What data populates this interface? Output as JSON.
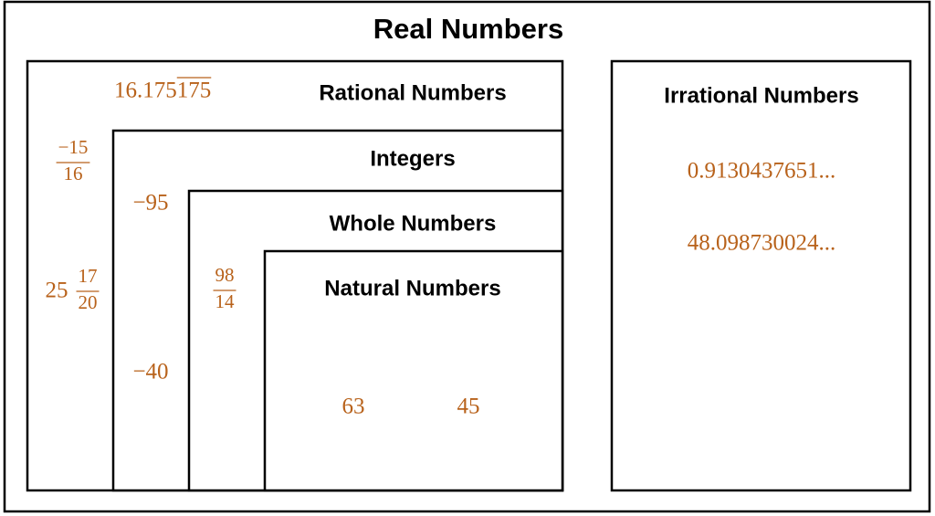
{
  "title": "Real Numbers",
  "rational": {
    "label": "Rational Numbers",
    "items": [
      {
        "whole": "16.175",
        "repeat": "175"
      },
      {
        "numerator": "−15",
        "denominator": "16"
      },
      {
        "whole": "25",
        "numerator": "17",
        "denominator": "20"
      }
    ]
  },
  "integers": {
    "label": "Integers",
    "items": [
      "−95",
      "−40"
    ]
  },
  "whole": {
    "label": "Whole Numbers",
    "items": [
      {
        "numerator": "98",
        "denominator": "14"
      }
    ]
  },
  "natural": {
    "label": "Natural Numbers",
    "items": [
      "63",
      "45"
    ]
  },
  "irrational": {
    "label": "Irrational Numbers",
    "items": [
      "0.9130437651...",
      "48.098730024..."
    ]
  }
}
